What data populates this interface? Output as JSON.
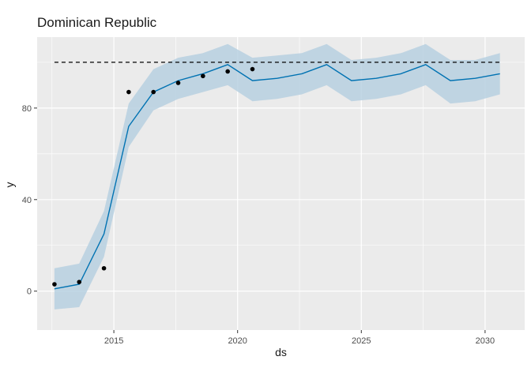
{
  "chart_data": {
    "type": "line",
    "title": "Dominican Republic",
    "xlabel": "ds",
    "ylabel": "y",
    "xlim": [
      2011.9,
      2031.6
    ],
    "ylim": [
      -17,
      111
    ],
    "x_ticks": [
      2015,
      2020,
      2025,
      2030
    ],
    "y_ticks": [
      0,
      40,
      80
    ],
    "x_tick_labels": [
      "2015",
      "2020",
      "2025",
      "2030"
    ],
    "y_tick_labels": [
      "0",
      "40",
      "80"
    ],
    "cap": 100,
    "observed": {
      "x": [
        2012.6,
        2013.6,
        2014.6,
        2015.6,
        2016.6,
        2017.6,
        2018.6,
        2019.6,
        2020.6
      ],
      "y": [
        3,
        4,
        10,
        87,
        87,
        91,
        94,
        96,
        97
      ]
    },
    "forecast": {
      "x": [
        2012.6,
        2013.6,
        2014.6,
        2015.6,
        2016.6,
        2017.6,
        2018.6,
        2019.6,
        2020.6,
        2021.6,
        2022.6,
        2023.6,
        2024.6,
        2025.6,
        2026.6,
        2027.6,
        2028.6,
        2029.6,
        2030.6
      ],
      "yhat": [
        1,
        3,
        25,
        72,
        87,
        92,
        95,
        99,
        92,
        93,
        95,
        99,
        92,
        93,
        95,
        99,
        92,
        93,
        95
      ],
      "yhat_upper": [
        10,
        12,
        35,
        82,
        97,
        102,
        104,
        108,
        102,
        103,
        104,
        108,
        101,
        102,
        104,
        108,
        101,
        101,
        104
      ],
      "yhat_lower": [
        -8,
        -7,
        15,
        63,
        79,
        84,
        87,
        90,
        83,
        84,
        86,
        90,
        83,
        84,
        86,
        90,
        82,
        83,
        86
      ]
    },
    "colors": {
      "panel": "#ebebeb",
      "grid_major": "#ffffff",
      "line": "#0072b2",
      "band": "#b7d0e0",
      "points": "#000000",
      "cap": "#000000"
    },
    "grid": true,
    "legend": "none"
  }
}
